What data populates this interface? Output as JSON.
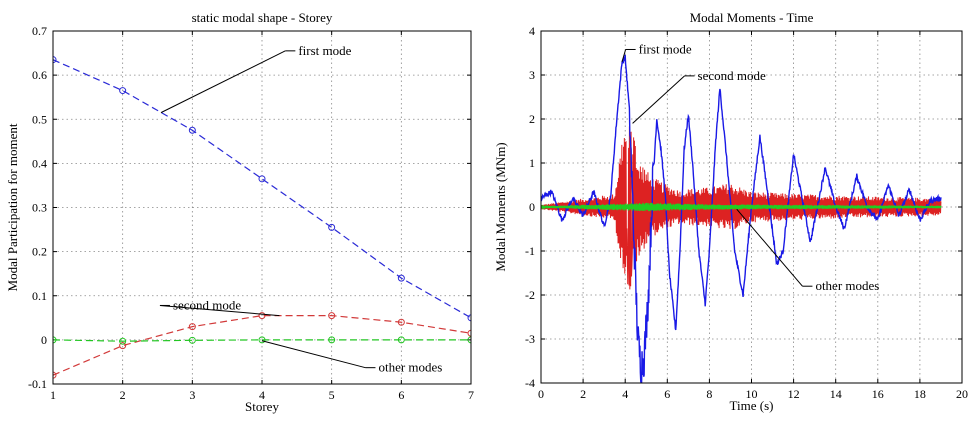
{
  "chart_data": [
    {
      "type": "line",
      "title": "static modal shape - Storey",
      "xlabel": "Storey",
      "ylabel": "Modal Participation for moment",
      "xlim": [
        1,
        7
      ],
      "ylim": [
        -0.1,
        0.7
      ],
      "xticks": [
        1,
        2,
        3,
        4,
        5,
        6,
        7
      ],
      "yticks": [
        -0.1,
        0,
        0.1,
        0.2,
        0.3,
        0.4,
        0.5,
        0.6,
        0.7
      ],
      "grid": true,
      "x": [
        1,
        2,
        3,
        4,
        5,
        6,
        7
      ],
      "series": [
        {
          "name": "first mode",
          "color": "#2a2ad6",
          "dash": "dashed",
          "marker": "circle",
          "values": [
            0.635,
            0.565,
            0.475,
            0.365,
            0.255,
            0.14,
            0.05
          ]
        },
        {
          "name": "second mode",
          "color": "#d23a3a",
          "dash": "dashed",
          "marker": "circle",
          "values": [
            -0.08,
            -0.013,
            0.03,
            0.055,
            0.055,
            0.04,
            0.015
          ]
        },
        {
          "name": "other modes",
          "color": "#22c622",
          "dash": "dashed",
          "marker": "circle",
          "values": [
            0,
            -0.003,
            -0.001,
            0,
            0,
            0,
            0
          ]
        }
      ],
      "annotations": [
        {
          "text": "first mode",
          "series": 0,
          "point": [
            2.55,
            0.515
          ],
          "label": [
            4.45,
            0.655
          ]
        },
        {
          "text": "second mode",
          "series": 1,
          "point": [
            4.25,
            0.055
          ],
          "label": [
            2.65,
            0.078
          ]
        },
        {
          "text": "other modes",
          "series": 2,
          "point": [
            4.0,
            -0.002
          ],
          "label": [
            5.6,
            -0.063
          ]
        }
      ]
    },
    {
      "type": "line",
      "title": "Modal Moments - Time",
      "xlabel": "Time (s)",
      "ylabel": "Modal Moments (MNm)",
      "xlim": [
        0,
        20
      ],
      "ylim": [
        -4,
        4
      ],
      "xticks": [
        0,
        2,
        4,
        6,
        8,
        10,
        12,
        14,
        16,
        18,
        20
      ],
      "yticks": [
        -4,
        -3,
        -2,
        -1,
        0,
        1,
        2,
        3,
        4
      ],
      "grid": true,
      "series": [
        {
          "name": "first mode",
          "color": "#1a1ae6",
          "time_range": [
            0,
            19
          ],
          "points": [
            [
              0,
              0.2
            ],
            [
              0.5,
              0.35
            ],
            [
              1,
              -0.3
            ],
            [
              1.5,
              0.2
            ],
            [
              2,
              -0.2
            ],
            [
              2.5,
              0.35
            ],
            [
              3,
              -0.45
            ],
            [
              3.3,
              0.2
            ],
            [
              3.6,
              2.0
            ],
            [
              3.85,
              3.3
            ],
            [
              4.0,
              3.4
            ],
            [
              4.2,
              2.2
            ],
            [
              4.4,
              -0.5
            ],
            [
              4.6,
              -3.0
            ],
            [
              4.75,
              -3.6
            ],
            [
              4.9,
              -3.4
            ],
            [
              5.1,
              -2.0
            ],
            [
              5.3,
              0.5
            ],
            [
              5.5,
              2.0
            ],
            [
              5.7,
              1.3
            ],
            [
              5.9,
              0.3
            ],
            [
              6.1,
              -1.5
            ],
            [
              6.4,
              -2.8
            ],
            [
              6.6,
              -1.0
            ],
            [
              6.8,
              1.3
            ],
            [
              7.0,
              2.1
            ],
            [
              7.2,
              1.0
            ],
            [
              7.5,
              -1.0
            ],
            [
              7.8,
              -2.2
            ],
            [
              8.0,
              -1.0
            ],
            [
              8.3,
              1.5
            ],
            [
              8.5,
              2.7
            ],
            [
              8.8,
              1.2
            ],
            [
              9.2,
              -1.0
            ],
            [
              9.6,
              -2.0
            ],
            [
              10.0,
              0.0
            ],
            [
              10.4,
              1.6
            ],
            [
              10.8,
              0.2
            ],
            [
              11.2,
              -1.3
            ],
            [
              11.5,
              -1.0
            ],
            [
              12.0,
              1.2
            ],
            [
              12.4,
              0.2
            ],
            [
              12.8,
              -0.8
            ],
            [
              13.5,
              0.9
            ],
            [
              14.0,
              0.0
            ],
            [
              14.4,
              -0.5
            ],
            [
              15.0,
              0.7
            ],
            [
              15.5,
              0.0
            ],
            [
              16.0,
              -0.3
            ],
            [
              16.5,
              0.5
            ],
            [
              17.0,
              -0.2
            ],
            [
              17.5,
              0.4
            ],
            [
              18.0,
              -0.3
            ],
            [
              18.5,
              0.15
            ],
            [
              19.0,
              0.2
            ]
          ]
        },
        {
          "name": "second mode",
          "color": "#dd2222",
          "time_range": [
            0,
            19
          ],
          "peaks": [
            [
              0,
              0.05
            ],
            [
              3.5,
              0.3
            ],
            [
              3.9,
              1.8
            ],
            [
              4.3,
              1.9
            ],
            [
              4.6,
              1.2
            ],
            [
              5.2,
              0.7
            ],
            [
              6.5,
              0.4
            ],
            [
              8.0,
              0.45
            ],
            [
              9.0,
              0.55
            ],
            [
              10.0,
              0.35
            ],
            [
              12.0,
              0.3
            ],
            [
              15.0,
              0.25
            ],
            [
              19.0,
              0.2
            ]
          ]
        },
        {
          "name": "other modes",
          "color": "#22cc22",
          "time_range": [
            0,
            19
          ],
          "peaks": [
            [
              0,
              0.02
            ],
            [
              4.0,
              0.08
            ],
            [
              5.0,
              0.1
            ],
            [
              8.0,
              0.06
            ],
            [
              19.0,
              0.03
            ]
          ]
        }
      ],
      "annotations": [
        {
          "text": "first mode",
          "series": 0,
          "point": [
            3.85,
            3.3
          ],
          "label": [
            4.4,
            3.58
          ]
        },
        {
          "text": "second mode",
          "series": 1,
          "point": [
            4.35,
            1.9
          ],
          "label": [
            7.2,
            2.98
          ]
        },
        {
          "text": "other modes",
          "series": 2,
          "point": [
            9.3,
            -0.05
          ],
          "label": [
            12.8,
            -1.8
          ]
        }
      ]
    }
  ]
}
